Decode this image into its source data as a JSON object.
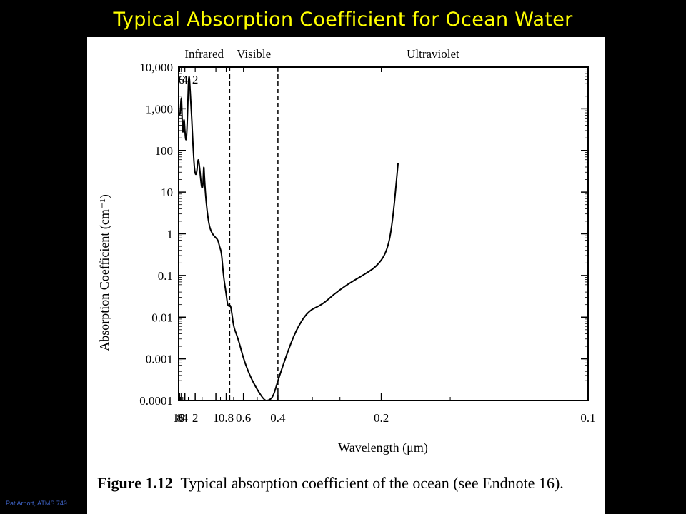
{
  "slide_title": "Typical Absorption Coefficient for Ocean Water",
  "footer": "Pat Arnott, ATMS 749",
  "caption": {
    "label": "Figure 1.12",
    "text": "Typical absorption coefficient of the ocean (see Endnote 16)."
  },
  "chart_data": {
    "type": "line",
    "title": "",
    "xlabel": "Wavelength (μm)",
    "ylabel": "Absorption Coefficient (cm⁻¹)",
    "x_scale": "reciprocal",
    "y_scale": "log",
    "xlim": [
      10,
      0.1
    ],
    "ylim": [
      0.0001,
      10000
    ],
    "grid": false,
    "x_ticks": [
      {
        "value": 10,
        "label": "10"
      },
      {
        "value": 8,
        "label": "8"
      },
      {
        "value": 6,
        "label": "6"
      },
      {
        "value": 4,
        "label": "4"
      },
      {
        "value": 2,
        "label": "2"
      },
      {
        "value": 1,
        "label": "1"
      },
      {
        "value": 0.8,
        "label": "0.8"
      },
      {
        "value": 0.6,
        "label": "0.6"
      },
      {
        "value": 0.4,
        "label": "0.4"
      },
      {
        "value": 0.2,
        "label": "0.2"
      },
      {
        "value": 0.1,
        "label": "0.1"
      }
    ],
    "y_ticks": [
      {
        "value": 10000,
        "label": "10,000"
      },
      {
        "value": 1000,
        "label": "1,000"
      },
      {
        "value": 100,
        "label": "100"
      },
      {
        "value": 10,
        "label": "10"
      },
      {
        "value": 1,
        "label": "1"
      },
      {
        "value": 0.1,
        "label": "0.1"
      },
      {
        "value": 0.01,
        "label": "0.01"
      },
      {
        "value": 0.001,
        "label": "0.001"
      },
      {
        "value": 0.0001,
        "label": "0.0001"
      }
    ],
    "top_ticks": [
      {
        "value": 6,
        "label": "6"
      },
      {
        "value": 4,
        "label": "4"
      },
      {
        "value": 2,
        "label": "2"
      }
    ],
    "regions": [
      {
        "name": "Infrared",
        "from": 10,
        "to": 0.75
      },
      {
        "name": "Visible",
        "from": 0.75,
        "to": 0.4
      },
      {
        "name": "Ultraviolet",
        "from": 0.4,
        "to": 0.1
      }
    ],
    "dividers": [
      0.75,
      0.4
    ],
    "series": [
      {
        "x": [
          10,
          9,
          8,
          7.2,
          6.5,
          6.0,
          5.6,
          5.2,
          4.9,
          4.6,
          4.3,
          4.0,
          3.7,
          3.4,
          3.1,
          2.95,
          2.8,
          2.6,
          2.4,
          2.25,
          2.1,
          1.97,
          1.85,
          1.75,
          1.65,
          1.55,
          1.5,
          1.45,
          1.43,
          1.41,
          1.38,
          1.3,
          1.2,
          1.1,
          1.0,
          0.95,
          0.92,
          0.88,
          0.85,
          0.83,
          0.8,
          0.78,
          0.76,
          0.74,
          0.72,
          0.7,
          0.67,
          0.64,
          0.6,
          0.55,
          0.5,
          0.46,
          0.44,
          0.42,
          0.4,
          0.37,
          0.34,
          0.31,
          0.28,
          0.26,
          0.24,
          0.22,
          0.205,
          0.195,
          0.19,
          0.185
        ],
        "values": [
          750,
          740,
          700,
          800,
          1500,
          2000,
          900,
          350,
          250,
          450,
          600,
          300,
          170,
          200,
          1500,
          5000,
          6500,
          2000,
          600,
          150,
          40,
          25,
          30,
          70,
          40,
          15,
          12,
          15,
          30,
          45,
          20,
          5,
          1.6,
          1,
          0.8,
          0.7,
          0.5,
          0.35,
          0.12,
          0.07,
          0.035,
          0.02,
          0.018,
          0.02,
          0.012,
          0.006,
          0.004,
          0.0025,
          0.001,
          0.0004,
          0.00018,
          0.0001,
          0.0001,
          0.00012,
          0.0003,
          0.0012,
          0.005,
          0.014,
          0.02,
          0.035,
          0.06,
          0.1,
          0.16,
          0.35,
          1.5,
          50
        ]
      }
    ]
  }
}
